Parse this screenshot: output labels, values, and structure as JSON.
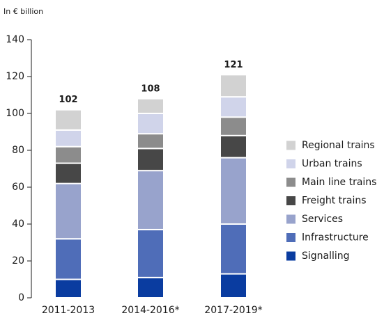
{
  "chart_data": {
    "type": "stacked_bar",
    "unit_label": "In € billion",
    "categories": [
      "2011-2013",
      "2014-2016*",
      "2017-2019*"
    ],
    "series": [
      {
        "name": "Signalling",
        "color": "#0a3ca0",
        "values": [
          10,
          11,
          13
        ]
      },
      {
        "name": "Infrastructure",
        "color": "#4f6db8",
        "values": [
          22,
          26,
          27
        ]
      },
      {
        "name": "Services",
        "color": "#98a3cc",
        "values": [
          30,
          32,
          36
        ]
      },
      {
        "name": "Freight trains",
        "color": "#474747",
        "values": [
          11,
          12,
          12
        ]
      },
      {
        "name": "Main line trains",
        "color": "#8c8c8c",
        "values": [
          9,
          8,
          10
        ]
      },
      {
        "name": "Urban trains",
        "color": "#d0d4ea",
        "values": [
          9,
          11,
          11
        ]
      },
      {
        "name": "Regional trains",
        "color": "#d2d2d2",
        "values": [
          11,
          8,
          12
        ]
      }
    ],
    "totals": [
      102,
      108,
      121
    ],
    "ylim": [
      0,
      140
    ],
    "yticks": [
      0,
      20,
      40,
      60,
      80,
      100,
      120,
      140
    ],
    "legend": "right"
  }
}
